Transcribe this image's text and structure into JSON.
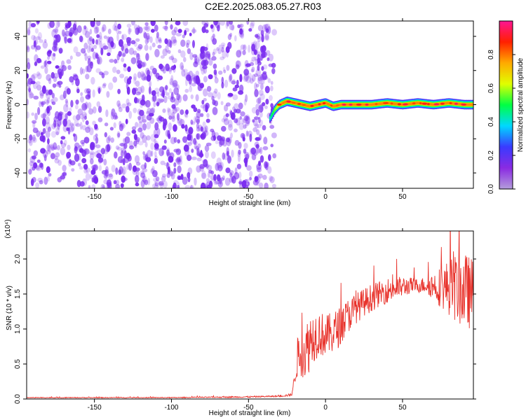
{
  "title": "C2E2.2025.083.05.27.R03",
  "colors": {
    "spectrogram_base": "#7a2cf0",
    "signal_line": "#e8322b",
    "colorbar_stops": [
      "#b39ddb",
      "#8a2be2",
      "#3a3aff",
      "#00d8ff",
      "#00ff44",
      "#e0ff00",
      "#ffaa00",
      "#ff2000",
      "#ff1493"
    ]
  },
  "chart_data": [
    {
      "type": "heatmap",
      "title": "",
      "xlabel": "Height of straight line (km)",
      "ylabel": "Frequency (Hz)",
      "xlim": [
        -194,
        96
      ],
      "ylim": [
        -49,
        49
      ],
      "xticks": [
        "-150",
        "-100",
        "-50",
        "0",
        "50"
      ],
      "xtick_values": [
        -150,
        -100,
        -50,
        0,
        50
      ],
      "yticks": [
        "-40",
        "-20",
        "0",
        "20",
        "40"
      ],
      "ytick_values": [
        -40,
        -20,
        0,
        20,
        40
      ],
      "noise_region": {
        "x": [
          -194,
          -33
        ],
        "y": [
          -49,
          49
        ],
        "amplitude": [
          0.0,
          0.2
        ]
      },
      "signal_track": {
        "x": [
          -36,
          -33,
          -30,
          -25,
          -20,
          -15,
          -10,
          -5,
          0,
          5,
          10,
          20,
          30,
          40,
          50,
          60,
          70,
          80,
          90,
          96
        ],
        "y": [
          -8,
          -3,
          0,
          2,
          1,
          0,
          -1,
          0,
          1,
          -1,
          0,
          0,
          0,
          1,
          0,
          1,
          0,
          1,
          0,
          0
        ],
        "peak_amplitude": 0.95
      },
      "colorbar": {
        "label": "Normalized spectral amplitude",
        "range": [
          0,
          1
        ],
        "ticks": [
          "0.0",
          "0.2",
          "0.4",
          "0.6",
          "0.8"
        ],
        "tick_values": [
          0,
          0.2,
          0.4,
          0.6,
          0.8
        ]
      },
      "grid": false
    },
    {
      "type": "line",
      "title": "",
      "xlabel": "Height of straight line (km)",
      "ylabel": "SNR (10 * v/v)",
      "yscale_label": "(x10⁴)",
      "xlim": [
        -194,
        96
      ],
      "ylim": [
        0,
        2.4
      ],
      "xticks": [
        "-150",
        "-100",
        "-50",
        "0",
        "50"
      ],
      "xtick_values": [
        -150,
        -100,
        -50,
        0,
        50
      ],
      "yticks": [
        "0.0",
        "0.5",
        "1.0",
        "1.5",
        "2.0"
      ],
      "ytick_values": [
        0,
        0.5,
        1.0,
        1.5,
        2.0
      ],
      "series": [
        {
          "x": [
            -194,
            -150,
            -100,
            -50,
            -30,
            -22,
            -20,
            -18,
            -15,
            -12,
            -10,
            -5,
            0,
            5,
            10,
            15,
            20,
            25,
            30,
            35,
            40,
            45,
            50,
            55,
            60,
            65,
            70,
            75,
            80,
            85,
            90,
            96
          ],
          "values": [
            0.02,
            0.02,
            0.02,
            0.03,
            0.04,
            0.06,
            0.3,
            0.62,
            0.66,
            0.7,
            0.85,
            0.95,
            0.9,
            0.95,
            1.05,
            1.2,
            1.3,
            1.38,
            1.45,
            1.5,
            1.55,
            1.58,
            1.6,
            1.62,
            1.62,
            1.63,
            1.62,
            1.6,
            1.6,
            1.58,
            1.55,
            1.5
          ],
          "noise_amplitude": [
            0.005,
            0.005,
            0.005,
            0.01,
            0.01,
            0.02,
            0.1,
            0.3,
            0.35,
            0.45,
            0.4,
            0.35,
            0.3,
            0.3,
            0.28,
            0.25,
            0.22,
            0.2,
            0.2,
            0.18,
            0.18,
            0.17,
            0.15,
            0.12,
            0.1,
            0.12,
            0.2,
            0.3,
            0.4,
            0.5,
            0.55,
            0.5
          ]
        }
      ],
      "grid": false
    }
  ]
}
